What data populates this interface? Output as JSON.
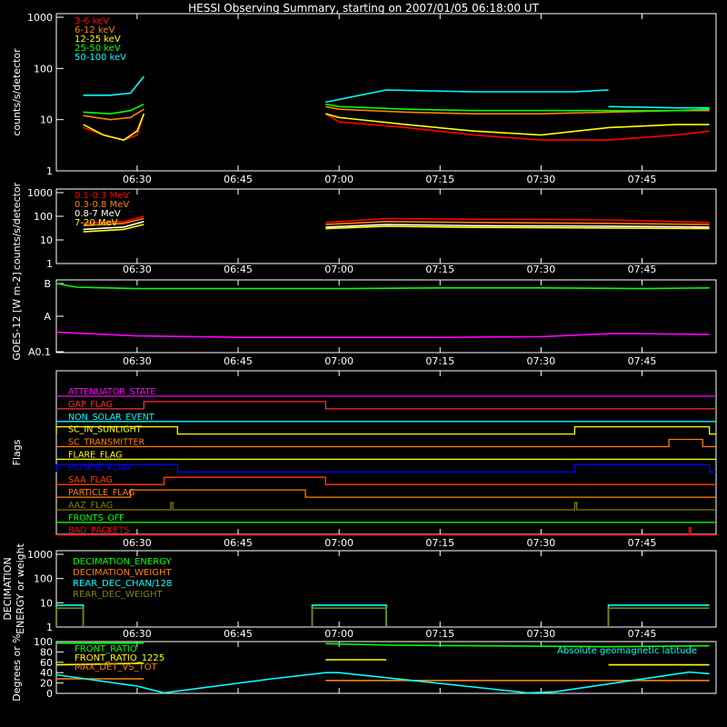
{
  "title": "HESSI Observing Summary, starting on 2007/01/05 06:18:00 UT",
  "time_ticks": [
    "06:30",
    "06:45",
    "07:00",
    "07:15",
    "07:30",
    "07:45"
  ],
  "chart_data": [
    {
      "type": "line",
      "ylabel": "counts/s/detector",
      "yscale": "log",
      "ylim": [
        1,
        1000
      ],
      "y_ticks": [
        "1",
        "10",
        "100",
        "1000"
      ],
      "series": [
        {
          "name": "3-6 keV",
          "color": "#ff0000",
          "segments": [
            {
              "x": [
                "06:22",
                "06:25",
                "06:28",
                "06:30",
                "06:31"
              ],
              "y": [
                7,
                5,
                4,
                5,
                13
              ]
            },
            {
              "x": [
                "06:58",
                "07:00",
                "07:10",
                "07:20",
                "07:30",
                "07:40",
                "07:50",
                "07:55"
              ],
              "y": [
                13,
                9,
                7,
                5,
                4,
                4,
                5,
                6
              ]
            }
          ]
        },
        {
          "name": "6-12 keV",
          "color": "#ff8000",
          "segments": [
            {
              "x": [
                "06:22",
                "06:26",
                "06:29",
                "06:31"
              ],
              "y": [
                12,
                10,
                11,
                16
              ]
            },
            {
              "x": [
                "06:58",
                "07:00",
                "07:10",
                "07:20",
                "07:30",
                "07:40",
                "07:50",
                "07:55"
              ],
              "y": [
                18,
                16,
                14,
                13,
                13,
                14,
                15,
                15
              ]
            }
          ]
        },
        {
          "name": "12-25 keV",
          "color": "#ffff00",
          "segments": [
            {
              "x": [
                "06:22",
                "06:25",
                "06:28",
                "06:30",
                "06:31"
              ],
              "y": [
                8,
                5,
                4,
                6,
                13
              ]
            },
            {
              "x": [
                "06:58",
                "07:00",
                "07:10",
                "07:20",
                "07:30",
                "07:40",
                "07:50",
                "07:55"
              ],
              "y": [
                13,
                11,
                8,
                6,
                5,
                7,
                8,
                8
              ]
            }
          ]
        },
        {
          "name": "25-50 keV",
          "color": "#00ff00",
          "segments": [
            {
              "x": [
                "06:22",
                "06:26",
                "06:29",
                "06:31"
              ],
              "y": [
                14,
                13,
                15,
                20
              ]
            },
            {
              "x": [
                "06:58",
                "07:00",
                "07:10",
                "07:20",
                "07:30",
                "07:40",
                "07:50",
                "07:55"
              ],
              "y": [
                20,
                18,
                16,
                15,
                15,
                15,
                15,
                16
              ]
            }
          ]
        },
        {
          "name": "50-100 keV",
          "color": "#00ffff",
          "segments": [
            {
              "x": [
                "06:22",
                "06:26",
                "06:29",
                "06:31"
              ],
              "y": [
                30,
                30,
                33,
                70
              ]
            },
            {
              "x": [
                "06:58",
                "07:07",
                "07:20",
                "07:35",
                "07:40"
              ],
              "y": [
                22,
                38,
                35,
                35,
                38
              ]
            },
            {
              "x": [
                "07:40",
                "07:50",
                "07:55"
              ],
              "y": [
                18,
                17,
                17
              ]
            }
          ]
        }
      ]
    },
    {
      "type": "line",
      "ylabel": "counts/s/detector",
      "yscale": "log",
      "ylim": [
        1,
        1000
      ],
      "y_ticks": [
        "1",
        "10",
        "100",
        "1000"
      ],
      "series": [
        {
          "name": "0.1-0.3 MeV",
          "color": "#ff0000",
          "segments": [
            {
              "x": [
                "06:22",
                "06:28",
                "06:31"
              ],
              "y": [
                50,
                60,
                100
              ]
            },
            {
              "x": [
                "06:58",
                "07:07",
                "07:20",
                "07:40",
                "07:55"
              ],
              "y": [
                55,
                80,
                75,
                70,
                55
              ]
            }
          ]
        },
        {
          "name": "0.3-0.8 MeV",
          "color": "#ff8000",
          "segments": [
            {
              "x": [
                "06:22",
                "06:28",
                "06:31"
              ],
              "y": [
                40,
                50,
                80
              ]
            },
            {
              "x": [
                "06:58",
                "07:07",
                "07:20",
                "07:40",
                "07:55"
              ],
              "y": [
                45,
                60,
                55,
                50,
                45
              ]
            }
          ]
        },
        {
          "name": "0.8-7 MeV",
          "color": "#ffffff",
          "segments": [
            {
              "x": [
                "06:22",
                "06:28",
                "06:31"
              ],
              "y": [
                28,
                35,
                60
              ]
            },
            {
              "x": [
                "06:58",
                "07:07",
                "07:20",
                "07:40",
                "07:55"
              ],
              "y": [
                35,
                45,
                40,
                38,
                35
              ]
            }
          ]
        },
        {
          "name": "7-20 MeV",
          "color": "#ffff00",
          "segments": [
            {
              "x": [
                "06:22",
                "06:28",
                "06:31"
              ],
              "y": [
                22,
                28,
                45
              ]
            },
            {
              "x": [
                "06:58",
                "07:07",
                "07:20",
                "07:40",
                "07:55"
              ],
              "y": [
                30,
                38,
                34,
                32,
                30
              ]
            }
          ]
        }
      ]
    },
    {
      "type": "line",
      "ylabel": "GOES-12 [W m-2]",
      "y_ticks": [
        "A0.1",
        "A",
        "B"
      ],
      "series": [
        {
          "color": "#00ff00",
          "x": [
            "06:18",
            "06:21",
            "06:30",
            "06:45",
            "07:00",
            "07:15",
            "07:30",
            "07:45",
            "07:55"
          ],
          "y": [
            9.5,
            9.0,
            8.8,
            8.8,
            8.8,
            8.9,
            8.9,
            8.8,
            8.9
          ]
        },
        {
          "color": "#ff00ff",
          "x": [
            "06:18",
            "06:30",
            "06:45",
            "07:00",
            "07:15",
            "07:30",
            "07:40",
            "07:45",
            "07:55"
          ],
          "y": [
            2.8,
            2.3,
            2.1,
            2.1,
            2.1,
            2.2,
            2.6,
            2.6,
            2.5
          ]
        }
      ]
    },
    {
      "type": "flags",
      "ylabel": "Flags",
      "flags": [
        {
          "name": "ATTENUATOR_STATE",
          "color": "#ff00ff",
          "on": []
        },
        {
          "name": "GAP_FLAG",
          "color": "#ff3030",
          "on": [
            [
              "06:31",
              "06:58"
            ]
          ]
        },
        {
          "name": "NON_SOLAR_EVENT",
          "color": "#00ffff",
          "on": []
        },
        {
          "name": "SC_IN_SUNLIGHT",
          "color": "#ffff00",
          "on": [
            [
              "06:18",
              "06:36"
            ],
            [
              "07:35",
              "07:55"
            ]
          ]
        },
        {
          "name": "SC_TRANSMITTER",
          "color": "#ff8000",
          "on": [
            [
              "07:49",
              "07:54"
            ]
          ]
        },
        {
          "name": "FLARE_FLAG",
          "color": "#ffff00",
          "on": []
        },
        {
          "name": "ECLIPSE_FLAG",
          "color": "#0000ff",
          "on": [
            [
              "06:18",
              "06:36"
            ],
            [
              "07:35",
              "07:55"
            ]
          ]
        },
        {
          "name": "SAA_FLAG",
          "color": "#ff4000",
          "on": [
            [
              "06:34",
              "06:58"
            ]
          ]
        },
        {
          "name": "PARTICLE_FLAG",
          "color": "#ff8000",
          "on": [
            [
              "06:29",
              "06:55"
            ]
          ]
        },
        {
          "name": "AAZ_FLAG",
          "color": "#808000",
          "on": [
            [
              "06:35",
              "06:35.3"
            ],
            [
              "07:35",
              "07:35.3"
            ]
          ]
        },
        {
          "name": "FRONTS_OFF",
          "color": "#00ff00",
          "on": []
        },
        {
          "name": "BAD_PACKETS",
          "color": "#ff0000",
          "on": [
            [
              "07:52",
              "07:52.2"
            ]
          ]
        }
      ]
    },
    {
      "type": "line",
      "ylabel": "DECIMATION ENERGY or weight",
      "yscale": "log",
      "ylim": [
        1,
        1000
      ],
      "y_ticks": [
        "1",
        "10",
        "100",
        "1000"
      ],
      "series": [
        {
          "name": "DECIMATION_ENERGY",
          "color": "#00ff00",
          "x": [],
          "y": []
        },
        {
          "name": "DECIMATION_WEIGHT",
          "color": "#ff8000",
          "x": [],
          "y": []
        },
        {
          "name": "REAR_DEC_CHAN/128",
          "color": "#00ffff",
          "segments": [
            {
              "x": [
                "06:18",
                "06:18",
                "06:22",
                "06:22"
              ],
              "y": [
                1,
                8,
                8,
                1
              ]
            },
            {
              "x": [
                "06:56",
                "06:56",
                "07:07",
                "07:07"
              ],
              "y": [
                1,
                8,
                8,
                1
              ]
            },
            {
              "x": [
                "07:40",
                "07:40",
                "07:55"
              ],
              "y": [
                1,
                8,
                8
              ]
            }
          ]
        },
        {
          "name": "REAR_DEC_WEIGHT",
          "color": "#808000",
          "segments": [
            {
              "x": [
                "06:18",
                "06:18",
                "06:22",
                "06:22"
              ],
              "y": [
                1,
                6,
                6,
                1
              ]
            },
            {
              "x": [
                "06:56",
                "06:56",
                "07:07",
                "07:07"
              ],
              "y": [
                1,
                6,
                6,
                1
              ]
            },
            {
              "x": [
                "07:40",
                "07:40",
                "07:55"
              ],
              "y": [
                1,
                6,
                6
              ]
            }
          ]
        }
      ]
    },
    {
      "type": "line",
      "ylabel": "Degrees or %",
      "ylim": [
        0,
        100
      ],
      "y_ticks": [
        "0",
        "20",
        "40",
        "60",
        "80",
        "100"
      ],
      "series": [
        {
          "name": "FRONT_RATIO",
          "color": "#00ff00",
          "segments": [
            {
              "x": [
                "06:18",
                "06:31"
              ],
              "y": [
                97,
                97
              ]
            },
            {
              "x": [
                "06:58",
                "07:08",
                "07:20",
                "07:40",
                "07:55"
              ],
              "y": [
                96,
                93,
                92,
                90,
                92
              ]
            }
          ]
        },
        {
          "name": "FRONT_RATIO_1225",
          "color": "#ffff00",
          "segments": [
            {
              "x": [
                "06:18",
                "06:31"
              ],
              "y": [
                55,
                58
              ]
            },
            {
              "x": [
                "06:58",
                "07:07"
              ],
              "y": [
                65,
                65
              ]
            },
            {
              "x": [
                "07:40",
                "07:55"
              ],
              "y": [
                55,
                55
              ]
            }
          ]
        },
        {
          "name": "MAX_DET_VS_TOT",
          "color": "#ff8000",
          "segments": [
            {
              "x": [
                "06:18",
                "06:31"
              ],
              "y": [
                28,
                28
              ]
            },
            {
              "x": [
                "06:58",
                "07:20",
                "07:40",
                "07:55"
              ],
              "y": [
                25,
                25,
                25,
                25
              ]
            }
          ]
        },
        {
          "name": "Absolute geomagnetic latitude",
          "color": "#00ffff",
          "x": [
            "06:18",
            "06:30",
            "06:34",
            "06:50",
            "06:58",
            "07:00",
            "07:28",
            "07:32",
            "07:52",
            "07:55"
          ],
          "y": [
            36,
            14,
            1,
            28,
            40,
            40,
            1,
            3,
            41,
            38
          ]
        }
      ]
    }
  ]
}
